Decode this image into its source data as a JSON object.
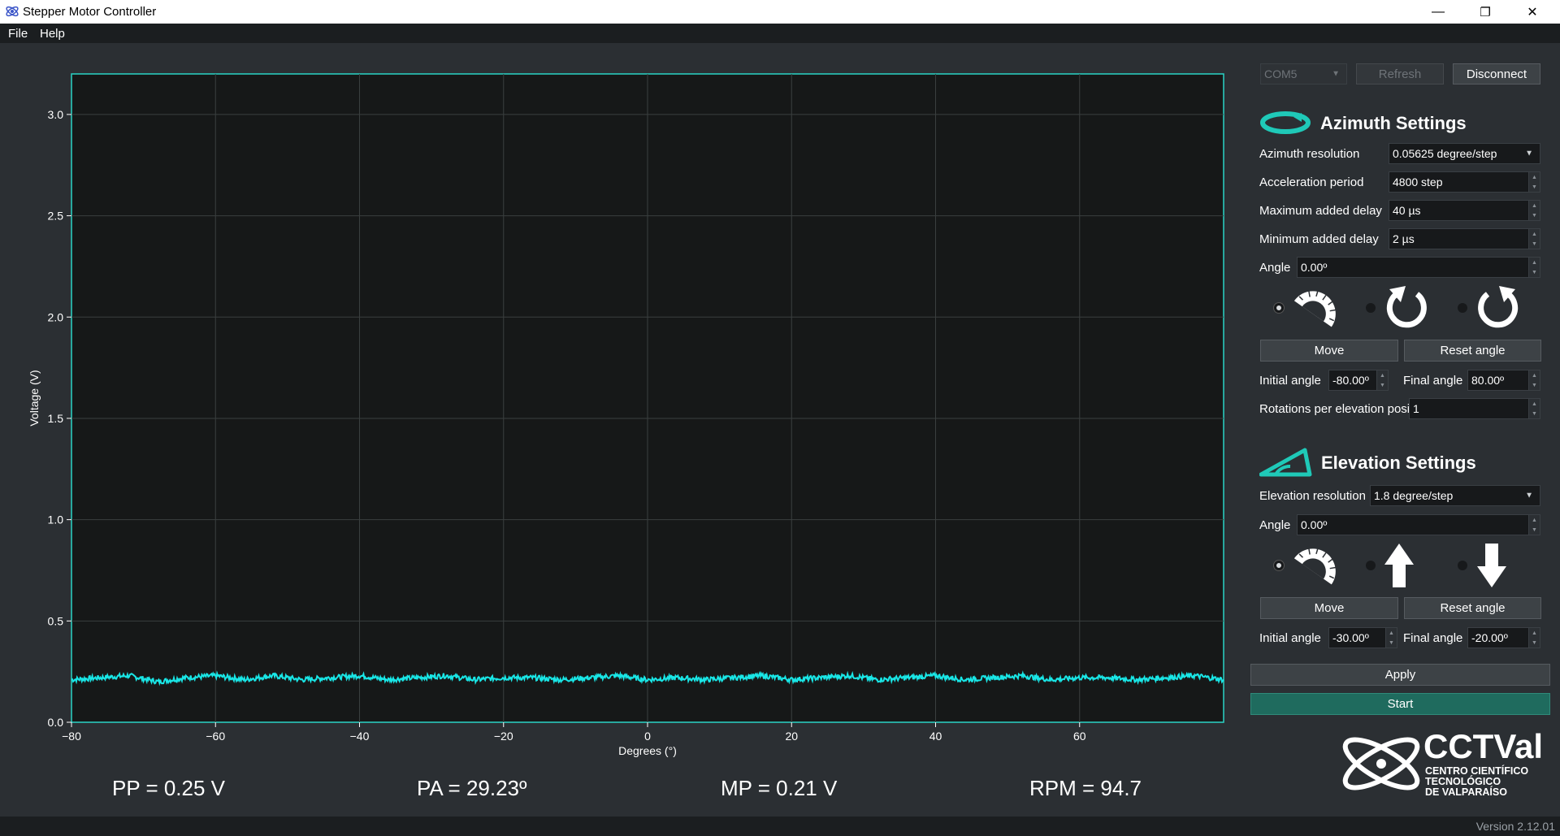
{
  "window": {
    "title": "Stepper Motor Controller",
    "controls": {
      "minimize": "—",
      "maximize": "❐",
      "close": "✕"
    }
  },
  "menu": {
    "items": [
      "File",
      "Help"
    ]
  },
  "connection": {
    "port": "COM5",
    "refresh_label": "Refresh",
    "disconnect_label": "Disconnect"
  },
  "azimuth": {
    "heading": "Azimuth Settings",
    "resolution_label": "Azimuth resolution",
    "resolution_value": "0.05625 degree/step",
    "accel_label": "Acceleration period",
    "accel_value": "4800 step",
    "max_delay_label": "Maximum added delay",
    "max_delay_value": "40 µs",
    "min_delay_label": "Minimum added delay",
    "min_delay_value": "2 µs",
    "angle_label": "Angle",
    "angle_value": "0.00º",
    "modes": [
      "protractor-icon",
      "rotate-ccw-icon",
      "rotate-cw-icon"
    ],
    "move_label": "Move",
    "reset_label": "Reset angle",
    "initial_label": "Initial angle",
    "initial_value": "-80.00º",
    "final_label": "Final angle",
    "final_value": "80.00º",
    "rotations_label": "Rotations per elevation position",
    "rotations_value": "1"
  },
  "elevation": {
    "heading": "Elevation Settings",
    "resolution_label": "Elevation resolution",
    "resolution_value": "1.8 degree/step",
    "angle_label": "Angle",
    "angle_value": "0.00º",
    "modes": [
      "protractor-icon",
      "arrow-up-icon",
      "arrow-down-icon"
    ],
    "move_label": "Move",
    "reset_label": "Reset angle",
    "initial_label": "Initial angle",
    "initial_value": "-30.00º",
    "final_label": "Final angle",
    "final_value": "-20.00º"
  },
  "actions": {
    "apply_label": "Apply",
    "start_label": "Start"
  },
  "logo": {
    "name": "CCTVal",
    "line1": "CENTRO CIENTÍFICO",
    "line2": "TECNOLÓGICO",
    "line3": "DE VALPARAÍSO"
  },
  "readouts": {
    "pp": "PP = 0.25 V",
    "pa": "PA = 29.23º",
    "mp": "MP = 0.21 V",
    "rpm": "RPM = 94.7"
  },
  "version": "Version 2.12.01",
  "colors": {
    "accent": "#1fc9b8",
    "plot_line": "#19e6e6",
    "plot_bg": "#161818",
    "plot_border": "#2ad4c6"
  },
  "chart_data": {
    "type": "line",
    "xlabel": "Degrees (°)",
    "ylabel": "Voltage (V)",
    "xlim": [
      -80,
      80
    ],
    "ylim": [
      0,
      3.2
    ],
    "xticks": [
      -80,
      -60,
      -40,
      -20,
      0,
      20,
      40,
      60
    ],
    "yticks": [
      0.0,
      0.5,
      1.0,
      1.5,
      2.0,
      2.5,
      3.0
    ],
    "grid": true,
    "series": [
      {
        "x": [
          -80,
          -76,
          -72,
          -68,
          -64,
          -60,
          -56,
          -52,
          -48,
          -44,
          -40,
          -36,
          -32,
          -28,
          -24,
          -20,
          -16,
          -12,
          -8,
          -4,
          0,
          4,
          8,
          12,
          16,
          20,
          24,
          28,
          32,
          36,
          40,
          44,
          48,
          52,
          56,
          60,
          64,
          68,
          72,
          76,
          80
        ],
        "y": [
          0.21,
          0.22,
          0.23,
          0.2,
          0.22,
          0.23,
          0.21,
          0.23,
          0.21,
          0.22,
          0.23,
          0.21,
          0.22,
          0.23,
          0.21,
          0.22,
          0.22,
          0.21,
          0.22,
          0.23,
          0.21,
          0.22,
          0.21,
          0.22,
          0.23,
          0.21,
          0.22,
          0.23,
          0.21,
          0.22,
          0.23,
          0.21,
          0.22,
          0.23,
          0.21,
          0.22,
          0.22,
          0.21,
          0.22,
          0.23,
          0.21
        ]
      }
    ]
  }
}
